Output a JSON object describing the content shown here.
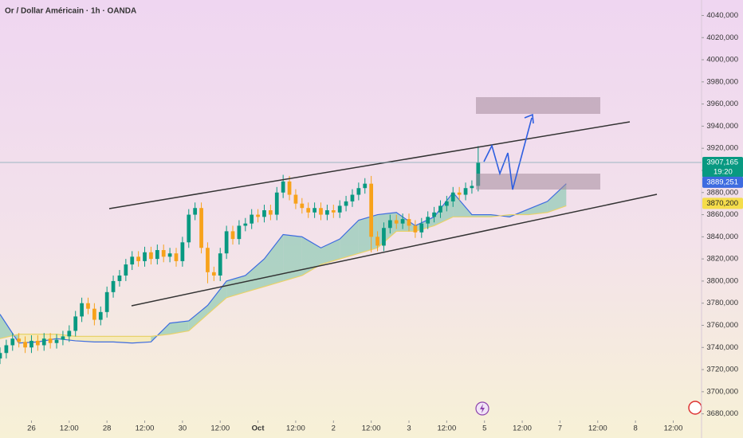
{
  "chart_data": {
    "type": "candlestick",
    "title": "Or / Dollar Américain · 1h · OANDA",
    "xlim": [
      -10,
      213
    ],
    "ylim": [
      3674,
      4054
    ],
    "xticks": [
      {
        "value": 0,
        "label": "26"
      },
      {
        "value": 12,
        "label": "12:00"
      },
      {
        "value": 24,
        "label": "28"
      },
      {
        "value": 36,
        "label": "12:00"
      },
      {
        "value": 48,
        "label": "30"
      },
      {
        "value": 60,
        "label": "12:00"
      },
      {
        "value": 72,
        "label": "Oct"
      },
      {
        "value": 84,
        "label": "12:00"
      },
      {
        "value": 96,
        "label": "2"
      },
      {
        "value": 108,
        "label": "12:00"
      },
      {
        "value": 120,
        "label": "3"
      },
      {
        "value": 132,
        "label": "12:00"
      },
      {
        "value": 144,
        "label": "5"
      },
      {
        "value": 156,
        "label": "12:00"
      },
      {
        "value": 168,
        "label": "7"
      },
      {
        "value": 180,
        "label": "12:00"
      },
      {
        "value": 192,
        "label": "8"
      },
      {
        "value": 204,
        "label": "12:00"
      }
    ],
    "yticks": [
      {
        "value": 3680,
        "label": "3680,000"
      },
      {
        "value": 3700,
        "label": "3700,000"
      },
      {
        "value": 3720,
        "label": "3720,000"
      },
      {
        "value": 3740,
        "label": "3740,000"
      },
      {
        "value": 3760,
        "label": "3760,000"
      },
      {
        "value": 3780,
        "label": "3780,000"
      },
      {
        "value": 3800,
        "label": "3800,000"
      },
      {
        "value": 3820,
        "label": "3820,000"
      },
      {
        "value": 3840,
        "label": "3840,000"
      },
      {
        "value": 3860,
        "label": "3860,000"
      },
      {
        "value": 3880,
        "label": "3880,000"
      },
      {
        "value": 3900,
        "label": "3900,000"
      },
      {
        "value": 3920,
        "label": "3920,000"
      },
      {
        "value": 3940,
        "label": "3940,000"
      },
      {
        "value": 3960,
        "label": "3960,000"
      },
      {
        "value": 3980,
        "label": "3980,000"
      },
      {
        "value": 4000,
        "label": "4000,000"
      },
      {
        "value": 4020,
        "label": "4020,000"
      },
      {
        "value": 4040,
        "label": "4040,000"
      }
    ],
    "up_color": "#089981",
    "down_color": "#f7a21b",
    "x": [
      -10,
      -8,
      -6,
      -4,
      -2,
      0,
      2,
      4,
      6,
      8,
      10,
      12,
      14,
      16,
      18,
      20,
      22,
      24,
      26,
      28,
      30,
      32,
      34,
      36,
      38,
      40,
      42,
      44,
      46,
      48,
      50,
      52,
      54,
      56,
      58,
      60,
      62,
      64,
      66,
      68,
      70,
      72,
      74,
      76,
      78,
      80,
      82,
      84,
      86,
      88,
      90,
      92,
      94,
      96,
      98,
      100,
      102,
      104,
      106,
      108,
      110,
      112,
      114,
      116,
      118,
      120,
      122,
      124,
      126,
      128,
      130,
      132,
      134,
      136,
      138,
      140,
      142
    ],
    "open": [
      3730,
      3735,
      3742,
      3748,
      3745,
      3740,
      3746,
      3742,
      3748,
      3744,
      3747,
      3750,
      3755,
      3768,
      3780,
      3775,
      3765,
      3772,
      3790,
      3800,
      3805,
      3815,
      3822,
      3818,
      3826,
      3820,
      3828,
      3822,
      3825,
      3818,
      3835,
      3860,
      3866,
      3830,
      3808,
      3805,
      3825,
      3845,
      3838,
      3850,
      3852,
      3860,
      3858,
      3864,
      3860,
      3880,
      3890,
      3878,
      3870,
      3866,
      3862,
      3866,
      3860,
      3864,
      3862,
      3868,
      3872,
      3878,
      3884,
      3888,
      3840,
      3832,
      3848,
      3855,
      3852,
      3856,
      3850,
      3844,
      3852,
      3858,
      3862,
      3868,
      3872,
      3880,
      3878,
      3884,
      3886
    ],
    "high": [
      3740,
      3747,
      3753,
      3753,
      3750,
      3751,
      3751,
      3753,
      3753,
      3752,
      3755,
      3760,
      3773,
      3785,
      3785,
      3780,
      3777,
      3795,
      3805,
      3810,
      3820,
      3827,
      3827,
      3831,
      3831,
      3833,
      3833,
      3830,
      3830,
      3840,
      3865,
      3871,
      3871,
      3835,
      3813,
      3830,
      3850,
      3850,
      3855,
      3857,
      3865,
      3865,
      3869,
      3869,
      3885,
      3896,
      3895,
      3883,
      3875,
      3871,
      3871,
      3871,
      3869,
      3869,
      3873,
      3877,
      3883,
      3889,
      3893,
      3895,
      3845,
      3853,
      3860,
      3860,
      3861,
      3861,
      3855,
      3857,
      3863,
      3867,
      3873,
      3877,
      3885,
      3885,
      3889,
      3891,
      3922
    ],
    "low": [
      3725,
      3730,
      3737,
      3740,
      3735,
      3735,
      3737,
      3737,
      3739,
      3739,
      3742,
      3745,
      3750,
      3763,
      3770,
      3760,
      3760,
      3767,
      3785,
      3795,
      3800,
      3810,
      3813,
      3813,
      3815,
      3815,
      3817,
      3817,
      3813,
      3813,
      3830,
      3855,
      3825,
      3798,
      3800,
      3800,
      3820,
      3833,
      3833,
      3845,
      3847,
      3853,
      3853,
      3855,
      3855,
      3875,
      3873,
      3865,
      3861,
      3857,
      3857,
      3855,
      3855,
      3857,
      3857,
      3863,
      3867,
      3873,
      3879,
      3826,
      3827,
      3827,
      3843,
      3847,
      3847,
      3845,
      3839,
      3839,
      3847,
      3853,
      3857,
      3863,
      3867,
      3873,
      3873,
      3879,
      3881
    ],
    "close": [
      3735,
      3742,
      3748,
      3745,
      3740,
      3746,
      3742,
      3748,
      3744,
      3747,
      3750,
      3755,
      3768,
      3780,
      3775,
      3765,
      3772,
      3790,
      3800,
      3805,
      3815,
      3822,
      3818,
      3826,
      3820,
      3828,
      3822,
      3825,
      3818,
      3835,
      3860,
      3866,
      3830,
      3808,
      3805,
      3825,
      3845,
      3838,
      3850,
      3852,
      3860,
      3858,
      3864,
      3860,
      3880,
      3890,
      3878,
      3870,
      3866,
      3862,
      3866,
      3860,
      3864,
      3862,
      3868,
      3872,
      3878,
      3884,
      3888,
      3840,
      3832,
      3848,
      3855,
      3852,
      3856,
      3850,
      3844,
      3852,
      3858,
      3862,
      3868,
      3872,
      3880,
      3878,
      3884,
      3886,
      3907
    ],
    "cloud": {
      "x": [
        -10,
        -4,
        2,
        8,
        14,
        20,
        26,
        32,
        38,
        44,
        50,
        56,
        62,
        68,
        74,
        80,
        86,
        92,
        98,
        104,
        110,
        116,
        122,
        128,
        134,
        140,
        146,
        152,
        158,
        164,
        170
      ],
      "span_a": [
        3770,
        3744,
        3745,
        3748,
        3746,
        3745,
        3745,
        3744,
        3745,
        3762,
        3764,
        3778,
        3800,
        3805,
        3820,
        3842,
        3840,
        3830,
        3838,
        3855,
        3860,
        3862,
        3850,
        3858,
        3880,
        3860,
        3860,
        3858,
        3865,
        3872,
        3888
      ],
      "span_b": [
        3748,
        3752,
        3752,
        3752,
        3750,
        3750,
        3750,
        3750,
        3750,
        3752,
        3755,
        3770,
        3785,
        3790,
        3795,
        3800,
        3805,
        3815,
        3820,
        3825,
        3830,
        3845,
        3845,
        3850,
        3858,
        3858,
        3858,
        3860,
        3860,
        3862,
        3868
      ],
      "line_a_color": "#3d6be0",
      "line_b_color": "#e8d26a",
      "fill_up": "#7fc7ac",
      "fill_down": "#f6eaa0"
    },
    "price_labels": [
      {
        "value": 3907.165,
        "label": "3907,165",
        "sub": "19:20",
        "color": "#089981"
      },
      {
        "value": 3889.251,
        "label": "3889,251",
        "color": "#3d6be0"
      },
      {
        "value": 3870.2,
        "label": "3870,200",
        "color": "#f5dd4b"
      }
    ]
  }
}
